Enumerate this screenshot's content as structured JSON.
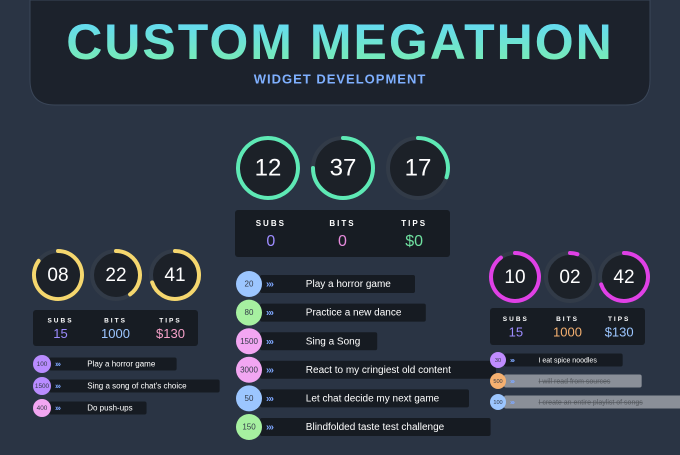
{
  "header": {
    "title": "CUSTOM MEGATHON",
    "subtitle": "WIDGET DEVELOPMENT"
  },
  "panels": [
    {
      "ring_color": "#5ee9b5",
      "timer": [
        "12",
        "37",
        "17"
      ],
      "stats": [
        {
          "label": "SUBS",
          "value": "0",
          "color": "#9d8cff"
        },
        {
          "label": "BITS",
          "value": "0",
          "color": "#e68bdc"
        },
        {
          "label": "TIPS",
          "value": "$0",
          "color": "#6fe0a0"
        }
      ],
      "goals": [
        {
          "amount": "20",
          "text": "Play a horror game",
          "color": "#9cc6ff"
        },
        {
          "amount": "80",
          "text": "Practice a new dance",
          "color": "#a6f0a0"
        },
        {
          "amount": "1500",
          "text": "Sing a Song",
          "color": "#f2a6f2"
        },
        {
          "amount": "3000",
          "text": "React to my cringiest old content",
          "color": "#f2a6f2"
        },
        {
          "amount": "50",
          "text": "Let chat decide my next game",
          "color": "#9cc6ff"
        },
        {
          "amount": "150",
          "text": "Blindfolded taste test challenge",
          "color": "#a6f0a0"
        }
      ]
    },
    {
      "ring_color": "#f5d76e",
      "timer": [
        "08",
        "22",
        "41"
      ],
      "stats": [
        {
          "label": "SUBS",
          "value": "15",
          "color": "#9d8cff"
        },
        {
          "label": "BITS",
          "value": "1000",
          "color": "#9cc6ff"
        },
        {
          "label": "TIPS",
          "value": "$130",
          "color": "#f5a0c8"
        }
      ],
      "goals": [
        {
          "amount": "100",
          "text": "Play a horror game",
          "color": "#b98cff"
        },
        {
          "amount": "1500",
          "text": "Sing a song of chat's choice",
          "color": "#b98cff"
        },
        {
          "amount": "400",
          "text": "Do push-ups",
          "color": "#f2a6f2"
        }
      ]
    },
    {
      "ring_color": "#e040e6",
      "timer": [
        "10",
        "02",
        "42"
      ],
      "stats": [
        {
          "label": "SUBS",
          "value": "15",
          "color": "#9d8cff"
        },
        {
          "label": "BITS",
          "value": "1000",
          "color": "#f5b070"
        },
        {
          "label": "TIPS",
          "value": "$130",
          "color": "#9cc6ff"
        }
      ],
      "goals": [
        {
          "amount": "30",
          "text": "I eat spice noodles",
          "color": "#c08cff"
        },
        {
          "amount": "500",
          "text": "I will read from sources",
          "color": "#f5b070",
          "done": true
        },
        {
          "amount": "100",
          "text": "I create an entire playlist of songs",
          "color": "#9cc6ff",
          "done": true
        }
      ]
    }
  ]
}
